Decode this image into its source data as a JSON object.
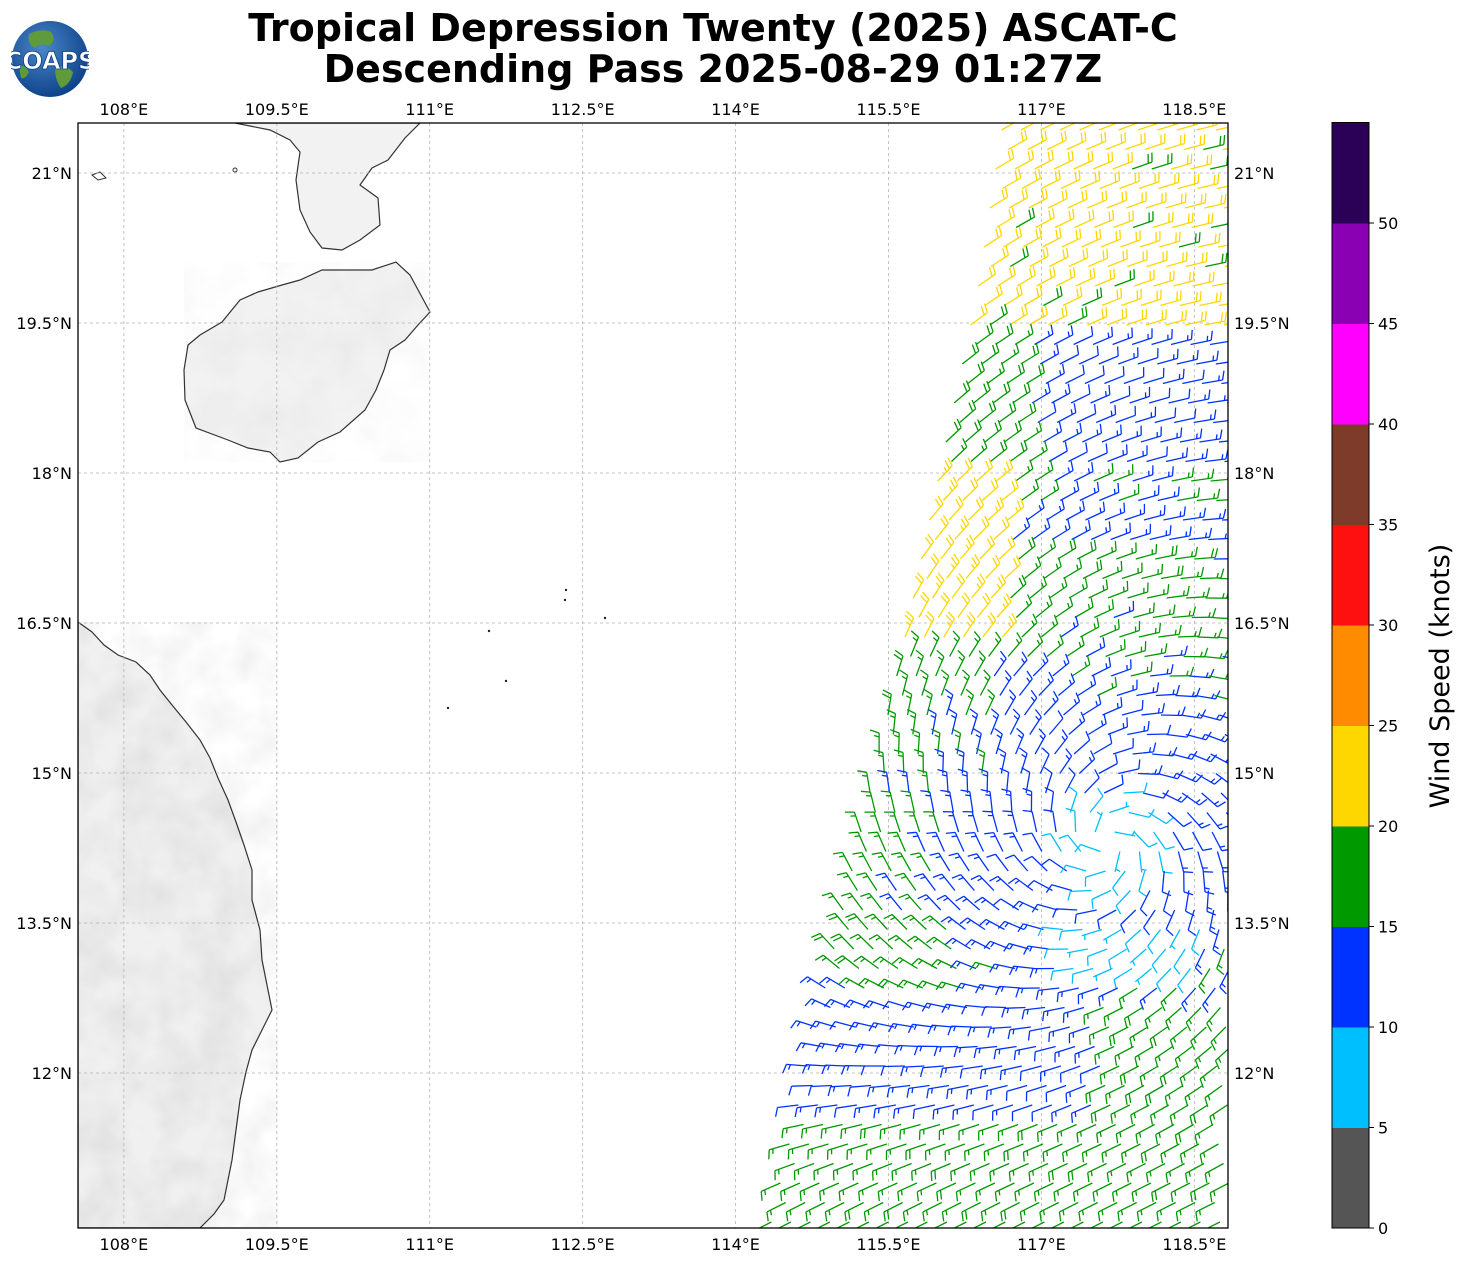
{
  "title": {
    "line1": "Tropical Depression Twenty (2025) ASCAT-C",
    "line2": "Descending Pass 2025-08-29 01:27Z"
  },
  "logo": {
    "text": "COAPS"
  },
  "map": {
    "lon_range": [
      107.55,
      118.83
    ],
    "lat_range": [
      10.45,
      21.5
    ],
    "lon_ticks": [
      "108°E",
      "109.5°E",
      "111°E",
      "112.5°E",
      "114°E",
      "115.5°E",
      "117°E",
      "118.5°E"
    ],
    "lon_tick_values": [
      108,
      109.5,
      111,
      112.5,
      114,
      115.5,
      117,
      118.5
    ],
    "lat_ticks": [
      "21°N",
      "19.5°N",
      "18°N",
      "16.5°N",
      "15°N",
      "13.5°N",
      "12°N"
    ],
    "lat_tick_values": [
      21,
      19.5,
      18,
      16.5,
      15,
      13.5,
      12
    ],
    "gridlines": true,
    "depression_center_lon_lat": [
      117.65,
      14.3
    ]
  },
  "colorbar": {
    "label": "Wind Speed (knots)",
    "tick_labels": [
      "0",
      "5",
      "10",
      "15",
      "20",
      "25",
      "30",
      "35",
      "40",
      "45",
      "50"
    ],
    "bins": [
      {
        "min": 0,
        "max": 5,
        "color": "#555555"
      },
      {
        "min": 5,
        "max": 10,
        "color": "#00bfff"
      },
      {
        "min": 10,
        "max": 15,
        "color": "#0033ff"
      },
      {
        "min": 15,
        "max": 20,
        "color": "#009900"
      },
      {
        "min": 20,
        "max": 25,
        "color": "#ffd700"
      },
      {
        "min": 25,
        "max": 30,
        "color": "#ff8c00"
      },
      {
        "min": 30,
        "max": 35,
        "color": "#ff1010"
      },
      {
        "min": 35,
        "max": 40,
        "color": "#7f3b2a"
      },
      {
        "min": 40,
        "max": 45,
        "color": "#ff00ff"
      },
      {
        "min": 45,
        "max": 50,
        "color": "#8a00b3"
      },
      {
        "min": 50,
        "max": 55,
        "color": "#2b0057"
      }
    ]
  }
}
